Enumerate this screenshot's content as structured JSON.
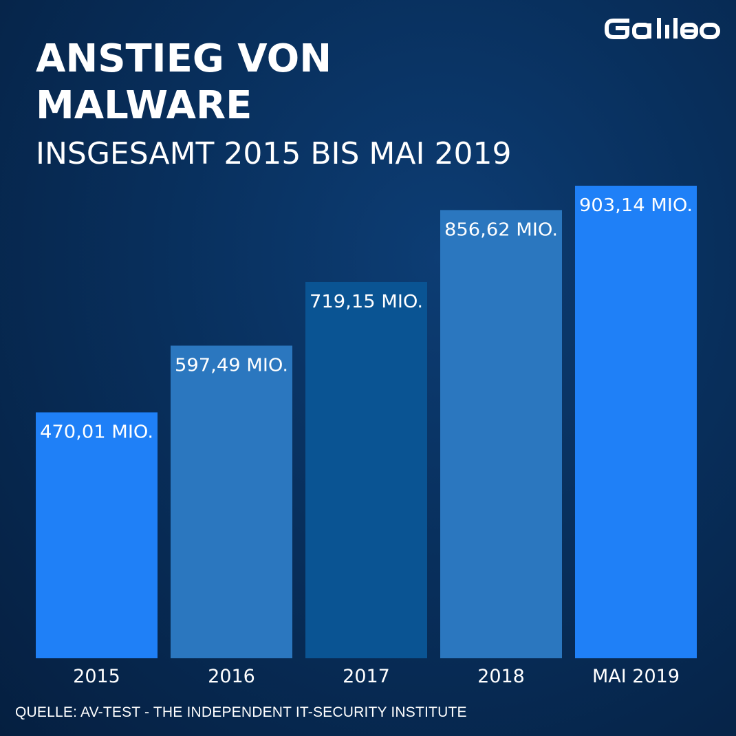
{
  "title": "ANSTIEG VON MALWARE",
  "subtitle": "INSGESAMT 2015 BIS MAI 2019",
  "logo_text": "Galileo",
  "source": "QUELLE:  AV-TEST - THE INDEPENDENT IT-SECURITY INSTITUTE",
  "colors": {
    "background": "#082f5c",
    "bar_2015": "#1f80f7",
    "bar_2016": "#2b77bf",
    "bar_2017": "#0a5493",
    "bar_2018": "#2b77bf",
    "bar_2019": "#1f80f7",
    "text": "#ffffff"
  },
  "chart_data": {
    "type": "bar",
    "categories": [
      "2015",
      "2016",
      "2017",
      "2018",
      "MAI 2019"
    ],
    "values": [
      470.01,
      597.49,
      719.15,
      856.62,
      903.14
    ],
    "data_labels": [
      "470,01 MIO.",
      "597,49 MIO.",
      "719,15 MIO.",
      "856,62 MIO.",
      "903,14 MIO."
    ],
    "title": "ANSTIEG VON MALWARE",
    "subtitle": "INSGESAMT 2015 BIS MAI 2019",
    "xlabel": "",
    "ylabel": "",
    "ylim": [
      0,
      903.14
    ],
    "grid": false,
    "legend": "none"
  }
}
